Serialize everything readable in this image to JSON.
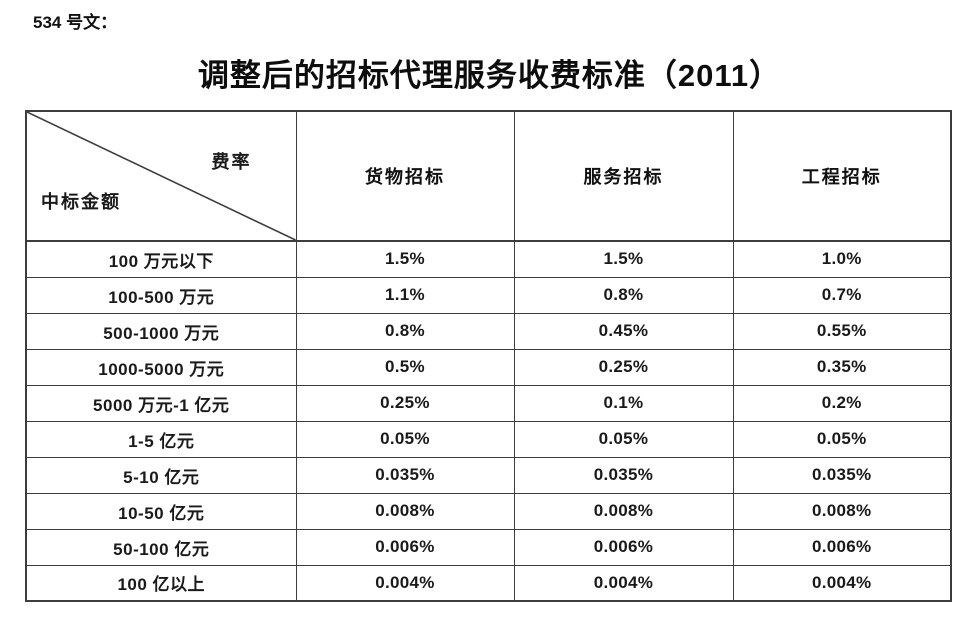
{
  "doc_label": "534 号文：",
  "title": "调整后的招标代理服务收费标准（2011）",
  "table": {
    "corner": {
      "top_right": "费率",
      "bottom_left": "中标金额"
    },
    "columns": [
      "货物招标",
      "服务招标",
      "工程招标"
    ],
    "rows": [
      {
        "label": "100 万元以下",
        "values": [
          "1.5%",
          "1.5%",
          "1.0%"
        ]
      },
      {
        "label": "100-500 万元",
        "values": [
          "1.1%",
          "0.8%",
          "0.7%"
        ]
      },
      {
        "label": "500-1000 万元",
        "values": [
          "0.8%",
          "0.45%",
          "0.55%"
        ]
      },
      {
        "label": "1000-5000 万元",
        "values": [
          "0.5%",
          "0.25%",
          "0.35%"
        ]
      },
      {
        "label": "5000 万元-1 亿元",
        "values": [
          "0.25%",
          "0.1%",
          "0.2%"
        ]
      },
      {
        "label": "1-5 亿元",
        "values": [
          "0.05%",
          "0.05%",
          "0.05%"
        ]
      },
      {
        "label": "5-10 亿元",
        "values": [
          "0.035%",
          "0.035%",
          "0.035%"
        ]
      },
      {
        "label": "10-50 亿元",
        "values": [
          "0.008%",
          "0.008%",
          "0.008%"
        ]
      },
      {
        "label": "50-100 亿元",
        "values": [
          "0.006%",
          "0.006%",
          "0.006%"
        ]
      },
      {
        "label": "100 亿以上",
        "values": [
          "0.004%",
          "0.004%",
          "0.004%"
        ]
      }
    ]
  },
  "colors": {
    "border": "#3d3d3d",
    "text": "#1a1a1a",
    "background": "#ffffff"
  }
}
